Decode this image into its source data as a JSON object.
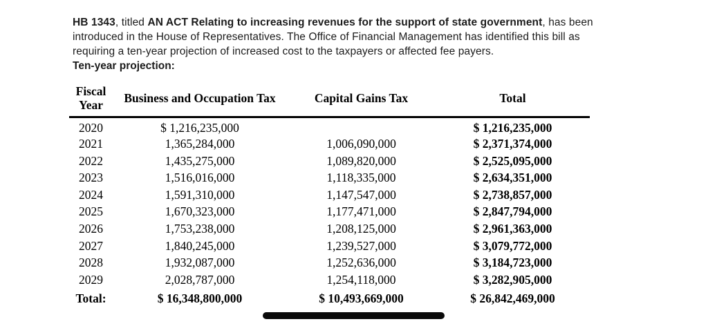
{
  "document": {
    "intro": {
      "bill_number_bold": "HB 1343",
      "mid_text": ", titled ",
      "act_title_bold": "AN ACT Relating to increasing revenues for the support of state government",
      "closing_text": ", has been introduced in the House of Representatives. The Office of Financial Management has identified this bill as requiring a ten-year projection of increased cost to the taxpayers or affected fee payers."
    },
    "section_heading": "Ten-year projection:"
  },
  "table": {
    "headers": {
      "fiscal_year": "Fiscal Year",
      "business_occupation": "Business and Occupation Tax",
      "capital_gains": "Capital Gains Tax",
      "total": "Total"
    },
    "rows": [
      {
        "year": "2020",
        "business_occupation": "$ 1,216,235,000",
        "capital_gains": "",
        "total": "$ 1,216,235,000"
      },
      {
        "year": "2021",
        "business_occupation": "1,365,284,000",
        "capital_gains": "1,006,090,000",
        "total": "$ 2,371,374,000"
      },
      {
        "year": "2022",
        "business_occupation": "1,435,275,000",
        "capital_gains": "1,089,820,000",
        "total": "$ 2,525,095,000"
      },
      {
        "year": "2023",
        "business_occupation": "1,516,016,000",
        "capital_gains": "1,118,335,000",
        "total": "$ 2,634,351,000"
      },
      {
        "year": "2024",
        "business_occupation": "1,591,310,000",
        "capital_gains": "1,147,547,000",
        "total": "$ 2,738,857,000"
      },
      {
        "year": "2025",
        "business_occupation": "1,670,323,000",
        "capital_gains": "1,177,471,000",
        "total": "$ 2,847,794,000"
      },
      {
        "year": "2026",
        "business_occupation": "1,753,238,000",
        "capital_gains": "1,208,125,000",
        "total": "$ 2,961,363,000"
      },
      {
        "year": "2027",
        "business_occupation": "1,840,245,000",
        "capital_gains": "1,239,527,000",
        "total": "$ 3,079,772,000"
      },
      {
        "year": "2028",
        "business_occupation": "1,932,087,000",
        "capital_gains": "1,252,636,000",
        "total": "$ 3,184,723,000"
      },
      {
        "year": "2029",
        "business_occupation": "2,028,787,000",
        "capital_gains": "1,254,118,000",
        "total": "$ 3,282,905,000"
      }
    ],
    "total_row": {
      "label": "Total:",
      "business_occupation": "$ 16,348,800,000",
      "capital_gains": "$ 10,493,669,000",
      "total": "$ 26,842,469,000"
    }
  },
  "colors": {
    "background": "#ffffff",
    "body_text": "#1b1b1b",
    "table_text": "#000000",
    "header_rule": "#000000",
    "home_indicator": "#0a0a0a"
  }
}
